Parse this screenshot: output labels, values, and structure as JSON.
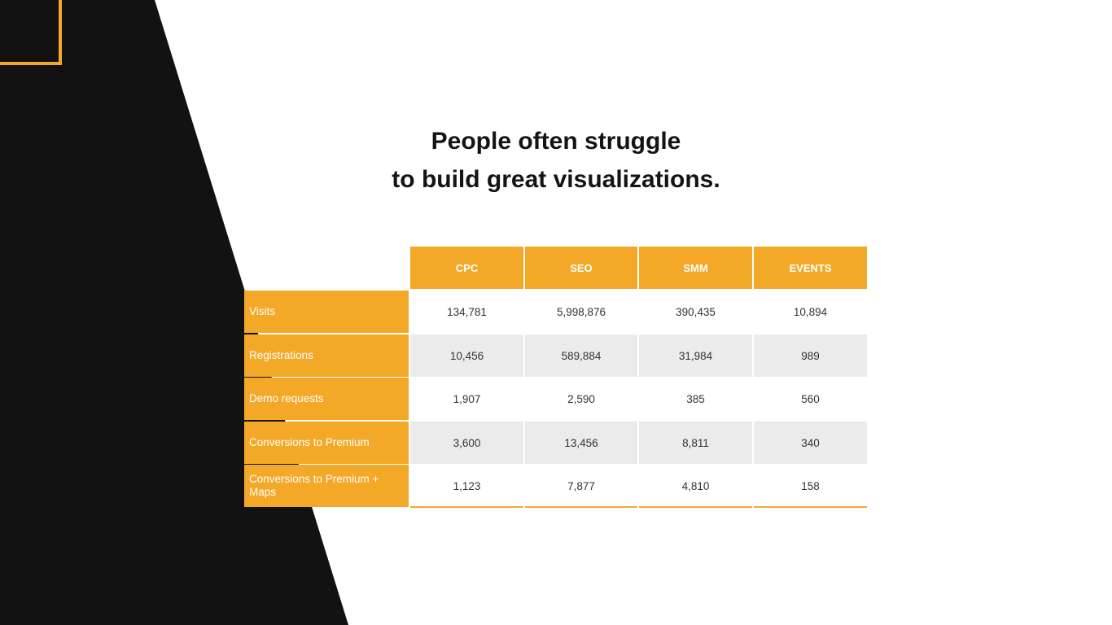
{
  "slide": {
    "title_line1": "People often struggle",
    "title_line2": "to build great visualizations.",
    "colors": {
      "accent": "#f4a828",
      "dark": "#121212",
      "alt_row": "#ebebeb"
    }
  },
  "table": {
    "columns": [
      "CPC",
      "SEO",
      "SMM",
      "EVENTS"
    ],
    "rows": [
      {
        "label": "Visits",
        "values": [
          "134,781",
          "5,998,876",
          "390,435",
          "10,894"
        ]
      },
      {
        "label": "Registrations",
        "values": [
          "10,456",
          "589,884",
          "31,984",
          "989"
        ]
      },
      {
        "label": "Demo requests",
        "values": [
          "1,907",
          "2,590",
          "385",
          "560"
        ]
      },
      {
        "label": "Conversions to Premium",
        "values": [
          "3,600",
          "13,456",
          "8,811",
          "340"
        ]
      },
      {
        "label": "Conversions to Premium + Maps",
        "values": [
          "1,123",
          "7,877",
          "4,810",
          "158"
        ]
      }
    ]
  }
}
